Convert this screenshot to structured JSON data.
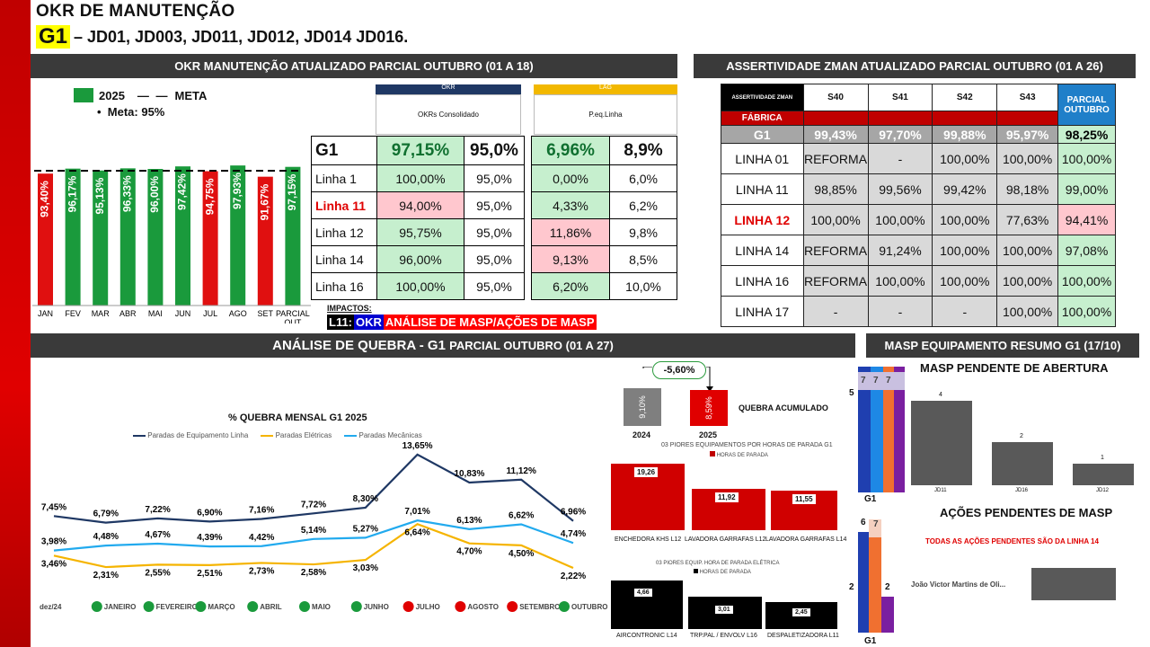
{
  "header": {
    "title": "OKR DE MANUTENÇÃO",
    "group": "G1",
    "groups_text": "– JD01, JD003, JD011, JD012, JD014 JD016."
  },
  "okr_panel": {
    "header": "OKR MANUTENÇÃO ATUALIZADO PARCIAL OUTUBRO (01 A 18)",
    "legend_2025": "2025",
    "legend_meta": "META",
    "meta_note": "Meta: 95%",
    "months": [
      "JAN",
      "FEV",
      "MAR",
      "ABR",
      "MAI",
      "JUN",
      "JUL",
      "AGO",
      "SET",
      "PARCIAL OUT"
    ],
    "bar_labels": [
      "93,40%",
      "96,17%",
      "95,13%",
      "96,33%",
      "96,00%",
      "97,42%",
      "94,75%",
      "97,93%",
      "91,67%",
      "97,15%"
    ],
    "table": {
      "okr_tag": "OKR",
      "lag_tag": "LAG",
      "okr_sub": "OKRs Consolidado",
      "lag_sub": "P.eq.Linha",
      "g1": {
        "name": "G1",
        "okr": "97,15%",
        "meta": "95,0%",
        "lag": "6,96%",
        "lagmeta": "8,9%"
      },
      "rows": [
        {
          "name": "Linha 1",
          "okr": "100,00%",
          "meta": "95,0%",
          "lag": "0,00%",
          "lagmeta": "6,0%"
        },
        {
          "name": "Linha 11",
          "okr": "94,00%",
          "meta": "95,0%",
          "lag": "4,33%",
          "lagmeta": "6,2%"
        },
        {
          "name": "Linha 12",
          "okr": "95,75%",
          "meta": "95,0%",
          "lag": "11,86%",
          "lagmeta": "9,8%"
        },
        {
          "name": "Linha 14",
          "okr": "96,00%",
          "meta": "95,0%",
          "lag": "9,13%",
          "lagmeta": "8,5%"
        },
        {
          "name": "Linha 16",
          "okr": "100,00%",
          "meta": "95,0%",
          "lag": "6,20%",
          "lagmeta": "10,0%"
        }
      ],
      "impactos": "IMPACTOS:",
      "l11": "L11:",
      "okr_word": "OKR",
      "masp_text": "ANÁLISE DE MASP/AÇÕES DE MASP"
    }
  },
  "assertividade": {
    "header": "ASSERTIVIDADE ZMAN ATUALIZADO PARCIAL OUTUBRO (01 A 26)",
    "col0": "ASSERTIVIDADE ZMAN",
    "cols": [
      "S40",
      "S41",
      "S42",
      "S43"
    ],
    "parcial": "PARCIAL OUTUBRO",
    "fabrica": "FÁBRICA",
    "g1": {
      "name": "G1",
      "vals": [
        "99,43%",
        "97,70%",
        "99,88%",
        "95,97%"
      ],
      "parcial": "98,25%"
    },
    "rows": [
      {
        "name": "LINHA 01",
        "vals": [
          "REFORMA",
          "-",
          "100,00%",
          "100,00%"
        ],
        "parcial": "100,00%"
      },
      {
        "name": "LINHA 11",
        "vals": [
          "98,85%",
          "99,56%",
          "99,42%",
          "98,18%"
        ],
        "parcial": "99,00%"
      },
      {
        "name": "LINHA 12",
        "vals": [
          "100,00%",
          "100,00%",
          "100,00%",
          "77,63%"
        ],
        "parcial": "94,41%"
      },
      {
        "name": "LINHA 14",
        "vals": [
          "REFORMA",
          "91,24%",
          "100,00%",
          "100,00%"
        ],
        "parcial": "97,08%"
      },
      {
        "name": "LINHA 16",
        "vals": [
          "REFORMA",
          "100,00%",
          "100,00%",
          "100,00%"
        ],
        "parcial": "100,00%"
      },
      {
        "name": "LINHA 17",
        "vals": [
          "-",
          "-",
          "-",
          "100,00%"
        ],
        "parcial": "100,00%"
      }
    ]
  },
  "quebra": {
    "header_a": "ANÁLISE DE QUEBRA -  G1 ",
    "header_b": "PARCIAL OUTUBRO (01 A 27)",
    "chart_title": "% QUEBRA MENSAL G1 2025",
    "series_names": [
      "Paradas de Equipamento Linha",
      "Paradas Elétricas",
      "Paradas Mecânicas"
    ],
    "x_labels": [
      "dez/24",
      "JANEIRO",
      "FEVEREIRO",
      "MARÇO",
      "ABRIL",
      "MAIO",
      "JUNHO",
      "JULHO",
      "AGOSTO",
      "SETEMBRO",
      "OUTUBRO"
    ],
    "equip": [
      "7,45%",
      "6,79%",
      "7,22%",
      "6,90%",
      "7,16%",
      "7,72%",
      "8,30%",
      "13,65%",
      "10,83%",
      "11,12%",
      "6,96%"
    ],
    "mec": [
      "3,98%",
      "4,48%",
      "4,67%",
      "4,39%",
      "4,42%",
      "5,14%",
      "5,27%",
      "7,01%",
      "6,13%",
      "6,62%",
      "4,74%"
    ],
    "ele": [
      "3,46%",
      "2,31%",
      "2,55%",
      "2,51%",
      "2,73%",
      "2,58%",
      "3,03%",
      "6,64%",
      "4,70%",
      "4,50%",
      "2,22%"
    ],
    "acc": {
      "diff": "-5,60%",
      "v2024": "9,10%",
      "v2025": "8,59%",
      "y2024": "2024",
      "y2025": "2025",
      "label": "QUEBRA ACUMULADO"
    },
    "piores": {
      "title": "03 PIORES EQUIPAMENTOS POR HORAS DE PARADA G1",
      "legend": "HORAS DE PARADA",
      "vals": [
        "19,26",
        "11,92",
        "11,55"
      ],
      "labels": [
        "ENCHEDORA KHS L12",
        "LAVADORA GARRAFAS L12",
        "LAVADORA GARRAFAS L14"
      ]
    },
    "eletrica": {
      "title": "03 PIORES EQUIP. HORA DE PARADA ELÉTRICA",
      "legend": "HORAS DE PARADA",
      "vals": [
        "4,66",
        "3,01",
        "2,45"
      ],
      "labels": [
        "AIRCONTRONIC  L14",
        "TRP.PAL / ENVOLV L16",
        "DESPALETIZADORA L11"
      ]
    }
  },
  "masp": {
    "header": "MASP EQUIPAMENTO RESUMO G1 (17/10)",
    "abertura_title": "MASP PENDENTE DE ABERTURA",
    "abertura_vals": [
      "4",
      "2",
      "1"
    ],
    "abertura_labels": [
      "JD11",
      "JD16",
      "JD12"
    ],
    "stack1": {
      "a": "5",
      "b": "7",
      "c": "7",
      "d": "7",
      "label": "G1"
    },
    "acoes_title": "AÇÕES PENDENTES DE MASP",
    "acoes_note": "TODAS AS AÇÕES PENDENTES SÃO DA LINHA 14",
    "person": "João Victor Martins de Oli...",
    "stack2": {
      "a": "6",
      "b": "7",
      "c": "2",
      "d": "2",
      "label": "G1"
    }
  }
}
